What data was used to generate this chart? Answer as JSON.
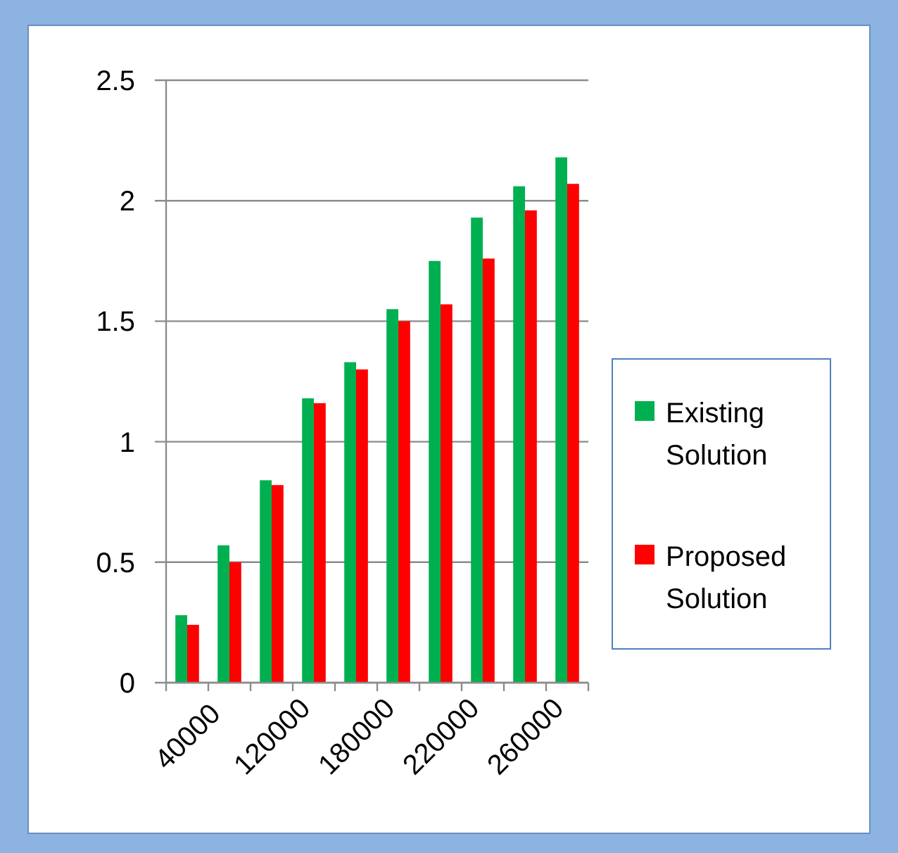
{
  "chart_data": {
    "type": "bar",
    "categories": [
      "40000",
      null,
      "120000",
      null,
      "180000",
      null,
      "220000",
      null,
      "260000",
      null
    ],
    "series": [
      {
        "name": "Existing Solution",
        "color": "#00b050",
        "values": [
          0.28,
          0.57,
          0.84,
          1.18,
          1.33,
          1.55,
          1.75,
          1.93,
          2.06,
          2.18
        ]
      },
      {
        "name": "Proposed Solution",
        "color": "#ff0000",
        "values": [
          0.24,
          0.5,
          0.82,
          1.16,
          1.3,
          1.5,
          1.57,
          1.76,
          1.96,
          2.07
        ]
      }
    ],
    "ylim": [
      0,
      2.5
    ],
    "yticks": [
      0,
      0.5,
      1,
      1.5,
      2,
      2.5
    ],
    "grid": "y",
    "legend": "right"
  }
}
